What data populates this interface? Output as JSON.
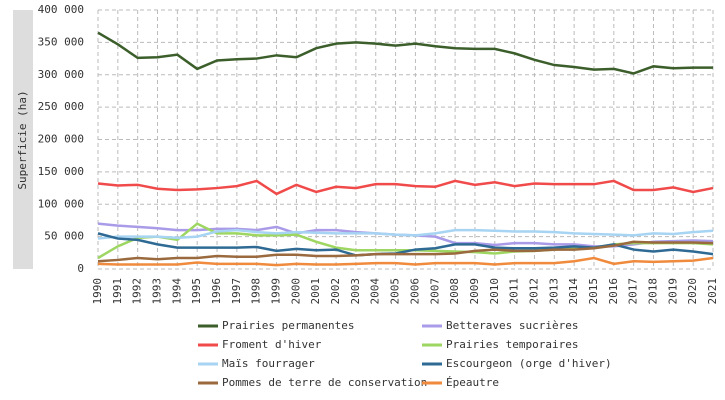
{
  "chart_data": {
    "type": "line",
    "ylabel": "Superficie (ha)",
    "categories": [
      "1990",
      "1991",
      "1992",
      "1993",
      "1994",
      "1995",
      "1996",
      "1997",
      "1998",
      "1999",
      "2000",
      "2001",
      "2002",
      "2003",
      "2004",
      "2005",
      "2006",
      "2007",
      "2008",
      "2009",
      "2010",
      "2011",
      "2012",
      "2013",
      "2014",
      "2015",
      "2016",
      "2017",
      "2018",
      "2019",
      "2020",
      "2021"
    ],
    "ylim": [
      0,
      400000
    ],
    "yticks": [
      0,
      {
        "value": 50000,
        "label": "50 000"
      },
      {
        "value": 100000,
        "label": "100 000"
      },
      {
        "value": 150000,
        "label": "150 000"
      },
      {
        "value": 200000,
        "label": "200 000"
      },
      {
        "value": 250000,
        "label": "250 000"
      },
      {
        "value": 300000,
        "label": "300 000"
      },
      {
        "value": 350000,
        "label": "350 000"
      },
      {
        "value": 400000,
        "label": "400 000"
      }
    ],
    "grid": true,
    "series": [
      {
        "name": "Prairies permanentes",
        "color": "#3b5e2b",
        "values": [
          365000,
          347000,
          326000,
          327000,
          331000,
          309000,
          322000,
          324000,
          325000,
          330000,
          327000,
          341000,
          348000,
          350000,
          348000,
          345000,
          348000,
          344000,
          341000,
          340000,
          340000,
          333000,
          323000,
          315000,
          312000,
          308000,
          309000,
          302000,
          313000,
          310000,
          311000,
          311000
        ]
      },
      {
        "name": "Betteraves sucrières",
        "color": "#a99be8",
        "values": [
          70000,
          67000,
          65000,
          63000,
          60000,
          60000,
          62000,
          62000,
          60000,
          65000,
          55000,
          60000,
          60000,
          57000,
          55000,
          53000,
          52000,
          50000,
          40000,
          40000,
          37000,
          40000,
          40000,
          38000,
          38000,
          35000,
          35000,
          38000,
          42000,
          43000,
          44000,
          43000
        ]
      },
      {
        "name": "Froment d'hiver",
        "color": "#f04a4a",
        "values": [
          132000,
          129000,
          130000,
          124000,
          122000,
          123000,
          125000,
          128000,
          136000,
          116000,
          130000,
          119000,
          127000,
          125000,
          131000,
          131000,
          128000,
          127000,
          136000,
          130000,
          134000,
          128000,
          132000,
          131000,
          131000,
          131000,
          136000,
          122000,
          122000,
          126000,
          119000,
          125000
        ]
      },
      {
        "name": "Prairies temporaires",
        "color": "#9ed662",
        "values": [
          17000,
          35000,
          48000,
          50000,
          45000,
          70000,
          55000,
          55000,
          52000,
          52000,
          53000,
          42000,
          33000,
          29000,
          29000,
          29000,
          29000,
          28000,
          27000,
          26000,
          24000,
          27000,
          28000,
          30000,
          32000,
          33000,
          38000,
          40000,
          40000,
          40000,
          40000,
          38000
        ]
      },
      {
        "name": "Maïs fourrager",
        "color": "#a6d4f2",
        "values": [
          47000,
          50000,
          50000,
          50000,
          48000,
          50000,
          58000,
          60000,
          57000,
          55000,
          57000,
          56000,
          55000,
          55000,
          55000,
          53000,
          52000,
          55000,
          60000,
          60000,
          59000,
          58000,
          58000,
          57000,
          55000,
          54000,
          53000,
          52000,
          55000,
          54000,
          57000,
          59000
        ]
      },
      {
        "name": "Escourgeon (orge d'hiver)",
        "color": "#2e6a94",
        "values": [
          55000,
          47000,
          45000,
          38000,
          33000,
          33000,
          33000,
          33000,
          34000,
          28000,
          31000,
          29000,
          30000,
          21000,
          23000,
          24000,
          30000,
          32000,
          38000,
          38000,
          33000,
          32000,
          32000,
          33000,
          35000,
          33000,
          38000,
          30000,
          27000,
          30000,
          27000,
          23000
        ]
      },
      {
        "name": "Pommes de terre de conservation",
        "color": "#9a6a3e",
        "values": [
          12000,
          14000,
          17000,
          15000,
          17000,
          17000,
          20000,
          19000,
          19000,
          22000,
          22000,
          20000,
          20000,
          21000,
          23000,
          23000,
          23000,
          23000,
          24000,
          28000,
          30000,
          28000,
          28000,
          30000,
          30000,
          32000,
          36000,
          42000,
          41000,
          41000,
          41000,
          40000
        ]
      },
      {
        "name": "Épeautre",
        "color": "#f08a3c",
        "values": [
          8000,
          7000,
          7000,
          7000,
          7000,
          10000,
          8000,
          8000,
          8000,
          6000,
          8000,
          7000,
          7000,
          8000,
          9000,
          9000,
          7000,
          9000,
          9000,
          9000,
          7000,
          9000,
          9000,
          9000,
          12000,
          17000,
          8000,
          12000,
          11000,
          12000,
          13000,
          17000
        ]
      }
    ]
  }
}
